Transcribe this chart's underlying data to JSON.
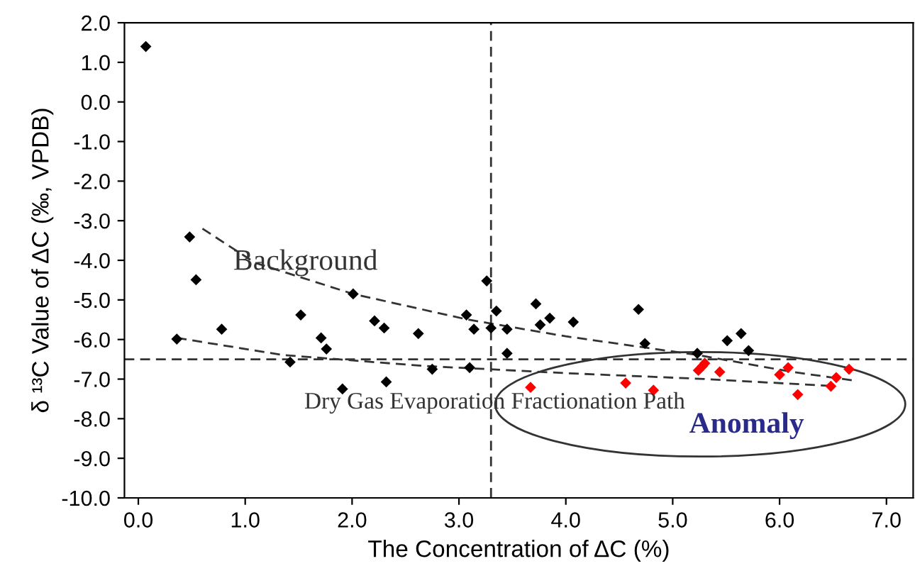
{
  "chart_data": {
    "type": "scatter",
    "xlabel": "The Concentration of ΔC (%)",
    "ylabel": "δ ¹³C Value of ΔC (‰, VPDB)",
    "xlim": [
      -0.13,
      7.25
    ],
    "ylim": [
      -10,
      2
    ],
    "xticks": [
      {
        "value": 0,
        "label": "0.0"
      },
      {
        "value": 1,
        "label": "1.0"
      },
      {
        "value": 2,
        "label": "2.0"
      },
      {
        "value": 3,
        "label": "3.0"
      },
      {
        "value": 4,
        "label": "4.0"
      },
      {
        "value": 5,
        "label": "5.0"
      },
      {
        "value": 6,
        "label": "6.0"
      },
      {
        "value": 7,
        "label": "7.0"
      }
    ],
    "yticks": [
      {
        "value": 2,
        "label": "2.0"
      },
      {
        "value": 1,
        "label": "1.0"
      },
      {
        "value": 0,
        "label": "0.0"
      },
      {
        "value": -1,
        "label": "-1.0"
      },
      {
        "value": -2,
        "label": "-2.0"
      },
      {
        "value": -3,
        "label": "-3.0"
      },
      {
        "value": -4,
        "label": "-4.0"
      },
      {
        "value": -5,
        "label": "-5.0"
      },
      {
        "value": -6,
        "label": "-6.0"
      },
      {
        "value": -7,
        "label": "-7.0"
      },
      {
        "value": -8,
        "label": "-8.0"
      },
      {
        "value": -9,
        "label": "-9.0"
      },
      {
        "value": -10,
        "label": "-10.0"
      }
    ],
    "marker": "diamond",
    "grid": false,
    "series": [
      {
        "color": "#000000",
        "x": [
          0.07,
          0.48,
          0.54,
          0.36,
          0.78,
          1.52,
          1.71,
          1.76,
          1.42,
          1.91,
          2.01,
          2.21,
          2.3,
          2.32,
          2.62,
          2.75,
          3.07,
          3.1,
          3.14,
          3.26,
          3.35,
          3.3,
          3.45,
          3.45,
          3.72,
          3.76,
          3.85,
          4.07,
          4.68,
          4.74,
          5.23,
          5.51,
          5.64,
          5.71
        ],
        "values": [
          1.4,
          -3.41,
          -4.49,
          -5.99,
          -5.74,
          -5.38,
          -5.96,
          -6.24,
          -6.57,
          -7.25,
          -4.85,
          -5.53,
          -5.71,
          -7.07,
          -5.85,
          -6.75,
          -5.38,
          -6.71,
          -5.74,
          -4.52,
          -5.28,
          -5.71,
          -5.74,
          -6.35,
          -5.1,
          -5.63,
          -5.46,
          -5.56,
          -5.24,
          -6.1,
          -6.35,
          -6.03,
          -5.85,
          -6.28
        ]
      },
      {
        "color": "#ff0000",
        "x": [
          3.67,
          4.56,
          4.82,
          5.24,
          5.28,
          5.3,
          5.44,
          6.0,
          6.08,
          6.17,
          6.48,
          6.53,
          6.65
        ],
        "values": [
          -7.21,
          -7.1,
          -7.28,
          -6.78,
          -6.67,
          -6.6,
          -6.82,
          -6.89,
          -6.71,
          -7.39,
          -7.18,
          -6.96,
          -6.75
        ]
      },
      {
        "type": "line",
        "color": "#333333",
        "line_style": "dashed",
        "marker": "none",
        "x": [
          0.6,
          1.09,
          2.01,
          3.07,
          4.0,
          5.23,
          6.12,
          6.68
        ],
        "values": [
          -3.2,
          -4.06,
          -4.85,
          -5.49,
          -5.92,
          -6.39,
          -6.82,
          -7.03
        ]
      },
      {
        "type": "line",
        "color": "#333333",
        "line_style": "dashed",
        "marker": "none",
        "x": [
          0.36,
          1.35,
          2.68,
          3.28,
          4.0,
          5.32,
          6.52
        ],
        "values": [
          -5.96,
          -6.39,
          -6.67,
          -6.75,
          -6.85,
          -7.0,
          -7.18
        ]
      }
    ],
    "ref_lines": [
      {
        "axis": "x",
        "value": 3.3,
        "color": "#333333",
        "line_style": "dashed"
      },
      {
        "axis": "y",
        "value": -6.5,
        "color": "#333333",
        "line_style": "dashed"
      }
    ],
    "annotations": [
      "Background",
      "Dry Gas Evaporation Fractionation Path",
      "Anomaly"
    ],
    "legend": false
  }
}
